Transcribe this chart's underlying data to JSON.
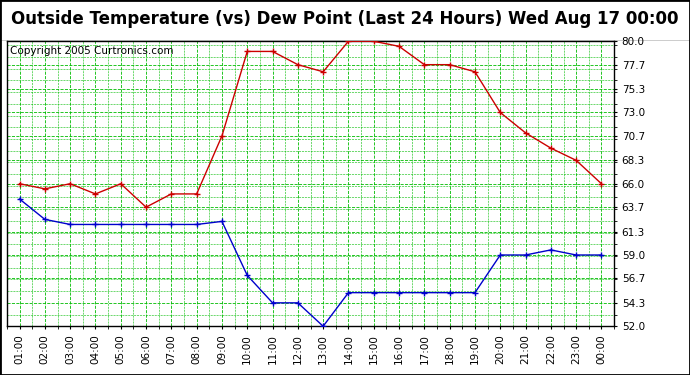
{
  "title": "Outside Temperature (vs) Dew Point (Last 24 Hours) Wed Aug 17 00:00",
  "copyright": "Copyright 2005 Curtronics.com",
  "x_labels": [
    "01:00",
    "02:00",
    "03:00",
    "04:00",
    "05:00",
    "06:00",
    "07:00",
    "08:00",
    "09:00",
    "10:00",
    "11:00",
    "12:00",
    "13:00",
    "14:00",
    "15:00",
    "16:00",
    "17:00",
    "18:00",
    "19:00",
    "20:00",
    "21:00",
    "22:00",
    "23:00",
    "00:00"
  ],
  "temp_red": [
    66.0,
    65.5,
    66.0,
    65.0,
    66.0,
    63.7,
    65.0,
    65.0,
    70.7,
    79.0,
    79.0,
    77.7,
    77.0,
    80.0,
    80.0,
    79.5,
    77.7,
    77.7,
    77.0,
    73.0,
    71.0,
    69.5,
    68.3,
    66.0
  ],
  "dew_blue": [
    64.5,
    62.5,
    62.0,
    62.0,
    62.0,
    62.0,
    62.0,
    62.0,
    62.3,
    57.0,
    54.3,
    54.3,
    52.0,
    55.3,
    55.3,
    55.3,
    55.3,
    55.3,
    55.3,
    59.0,
    59.0,
    59.5,
    59.0,
    59.0
  ],
  "ylim": [
    52.0,
    80.0
  ],
  "yticks": [
    52.0,
    54.3,
    56.7,
    59.0,
    61.3,
    63.7,
    66.0,
    68.3,
    70.7,
    73.0,
    75.3,
    77.7,
    80.0
  ],
  "red_color": "#cc0000",
  "blue_color": "#0000cc",
  "bg_color": "#ffffff",
  "plot_bg": "#ffffff",
  "grid_color": "#00bb00",
  "title_fontsize": 12,
  "copyright_fontsize": 7.5,
  "tick_fontsize": 7.5
}
